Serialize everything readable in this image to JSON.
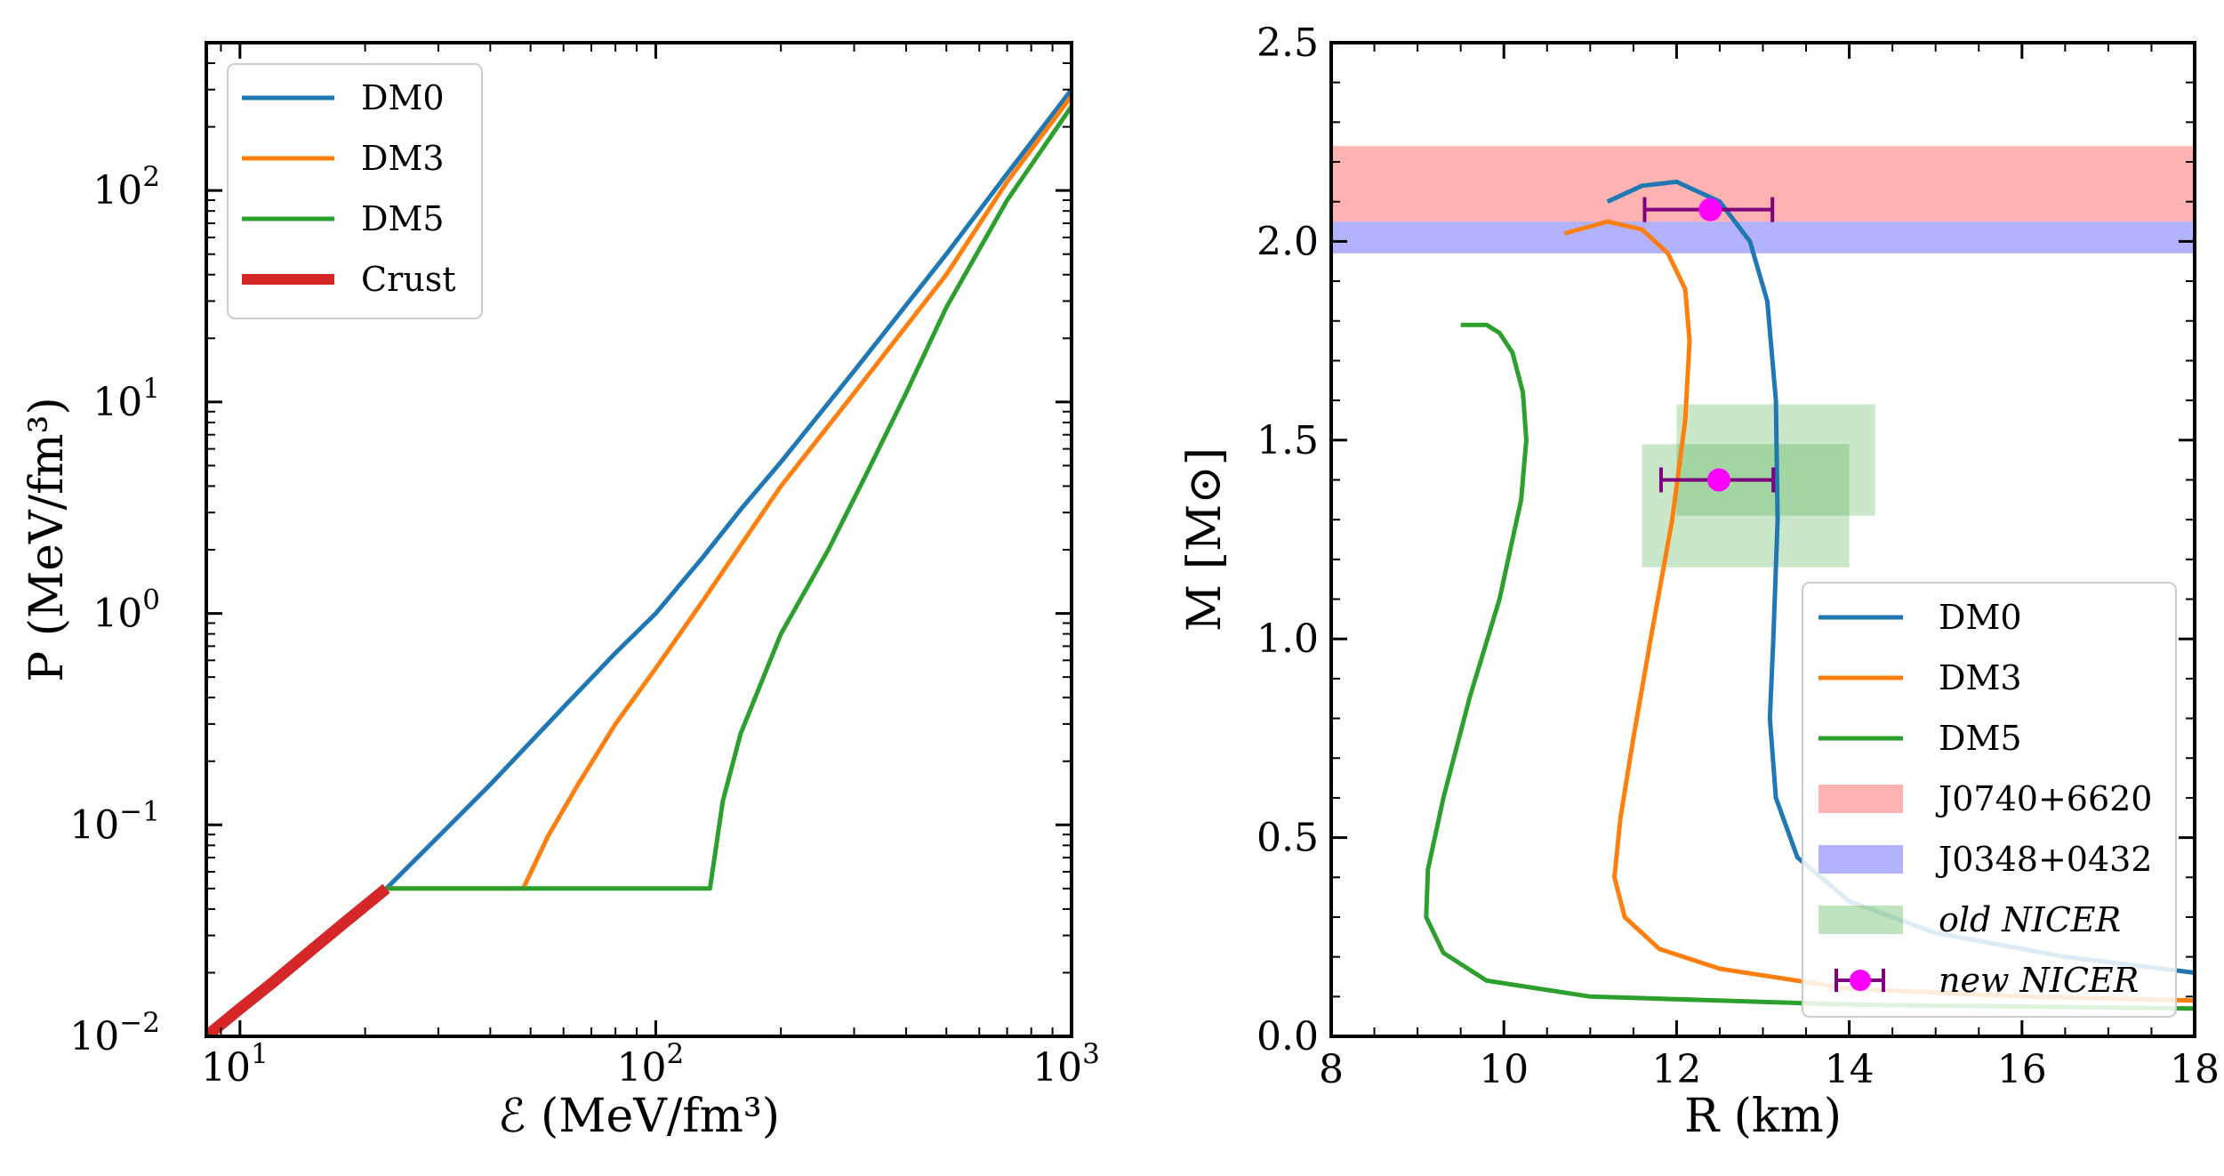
{
  "chart_data": [
    {
      "type": "line",
      "xscale": "log",
      "yscale": "log",
      "xlim": [
        8.3,
        1000
      ],
      "ylim": [
        0.01,
        500
      ],
      "xlabel": "ℰ (MeV/fm³)",
      "ylabel": "P (MeV/fm³)",
      "xticks": [
        {
          "value": 10,
          "base": "10",
          "exp": "1"
        },
        {
          "value": 100,
          "base": "10",
          "exp": "2"
        },
        {
          "value": 1000,
          "base": "10",
          "exp": "3"
        }
      ],
      "yticks": [
        {
          "value": 0.01,
          "base": "10",
          "exp": "−2"
        },
        {
          "value": 0.1,
          "base": "10",
          "exp": "−1"
        },
        {
          "value": 1,
          "base": "10",
          "exp": "0"
        },
        {
          "value": 10,
          "base": "10",
          "exp": "1"
        },
        {
          "value": 100,
          "base": "10",
          "exp": "2"
        }
      ],
      "legend_position": "upper-left",
      "series": [
        {
          "name": "DM0",
          "color": "#1f77b4",
          "x": [
            22.5,
            30,
            40,
            60,
            80,
            100,
            130,
            160,
            200,
            300,
            500,
            700,
            1000
          ],
          "y": [
            0.05,
            0.088,
            0.155,
            0.36,
            0.65,
            1.0,
            1.85,
            3.1,
            5.2,
            14,
            50,
            120,
            300
          ]
        },
        {
          "name": "DM3",
          "color": "#ff7f0e",
          "x": [
            22.5,
            48,
            55,
            65,
            80,
            100,
            130,
            160,
            200,
            300,
            500,
            700,
            1000
          ],
          "y": [
            0.05,
            0.05,
            0.088,
            0.155,
            0.3,
            0.55,
            1.15,
            2.1,
            4.0,
            11,
            40,
            110,
            280
          ]
        },
        {
          "name": "DM5",
          "color": "#2ca02c",
          "x": [
            22.5,
            60,
            100,
            135,
            145,
            160,
            200,
            260,
            320,
            400,
            500,
            700,
            1000
          ],
          "y": [
            0.05,
            0.05,
            0.05,
            0.05,
            0.13,
            0.27,
            0.8,
            2.0,
            4.5,
            11,
            28,
            90,
            250
          ]
        },
        {
          "name": "Crust",
          "color": "#d62728",
          "x": [
            8.3,
            10,
            12,
            15,
            18,
            22.5
          ],
          "y": [
            0.01,
            0.0135,
            0.018,
            0.026,
            0.035,
            0.05
          ]
        }
      ]
    },
    {
      "type": "line",
      "xlim": [
        8,
        18
      ],
      "ylim": [
        0,
        2.5
      ],
      "xlabel": "R (km)",
      "ylabel": "M [M⊙]",
      "xticks": [
        "8",
        "10",
        "12",
        "14",
        "16",
        "18"
      ],
      "yticks": [
        "0.0",
        "0.5",
        "1.0",
        "1.5",
        "2.0",
        "2.5"
      ],
      "legend_position": "lower-right",
      "series": [
        {
          "name": "DM0",
          "color": "#1f77b4",
          "x": [
            18,
            16.5,
            15,
            14,
            13.4,
            13.15,
            13.08,
            13.12,
            13.17,
            13.15,
            13.05,
            12.85,
            12.5,
            12.0,
            11.6,
            11.2
          ],
          "y": [
            0.16,
            0.2,
            0.26,
            0.34,
            0.45,
            0.6,
            0.8,
            1.0,
            1.3,
            1.6,
            1.85,
            2.0,
            2.1,
            2.15,
            2.14,
            2.1
          ]
        },
        {
          "name": "DM3",
          "color": "#ff7f0e",
          "x": [
            18,
            16,
            14,
            12.5,
            11.8,
            11.4,
            11.28,
            11.35,
            11.5,
            11.7,
            11.95,
            12.1,
            12.15,
            12.1,
            11.9,
            11.6,
            11.2,
            10.7
          ],
          "y": [
            0.09,
            0.1,
            0.12,
            0.17,
            0.22,
            0.3,
            0.4,
            0.55,
            0.75,
            1.0,
            1.3,
            1.55,
            1.75,
            1.88,
            1.97,
            2.03,
            2.05,
            2.02
          ]
        },
        {
          "name": "DM5",
          "color": "#2ca02c",
          "x": [
            18,
            14,
            11,
            9.8,
            9.3,
            9.1,
            9.12,
            9.3,
            9.6,
            9.95,
            10.2,
            10.26,
            10.22,
            10.1,
            9.95,
            9.8,
            9.5
          ],
          "y": [
            0.07,
            0.08,
            0.1,
            0.14,
            0.21,
            0.3,
            0.42,
            0.6,
            0.85,
            1.1,
            1.35,
            1.5,
            1.62,
            1.72,
            1.77,
            1.79,
            1.79
          ]
        }
      ],
      "bands": [
        {
          "name": "J0740+6620",
          "color": "#ff0000",
          "y_range": [
            2.05,
            2.24
          ]
        },
        {
          "name": "J0348+0432",
          "color": "#0000ff",
          "y_range": [
            1.97,
            2.05
          ]
        }
      ],
      "boxes": [
        {
          "name": "old NICER",
          "color": "#2ca02c",
          "regions": [
            {
              "x_range": [
                12.0,
                14.3
              ],
              "y_range": [
                1.31,
                1.59
              ]
            },
            {
              "x_range": [
                11.6,
                14.0
              ],
              "y_range": [
                1.18,
                1.49
              ]
            }
          ]
        }
      ],
      "points": [
        {
          "name": "new NICER",
          "color": "#ff00ff",
          "errcolor": "#7f007f",
          "data": [
            {
              "x": 12.39,
              "y": 2.08,
              "xerr": [
                0.76,
                0.72
              ]
            },
            {
              "x": 12.49,
              "y": 1.4,
              "xerr": [
                0.67,
                0.63
              ]
            }
          ]
        }
      ]
    }
  ]
}
